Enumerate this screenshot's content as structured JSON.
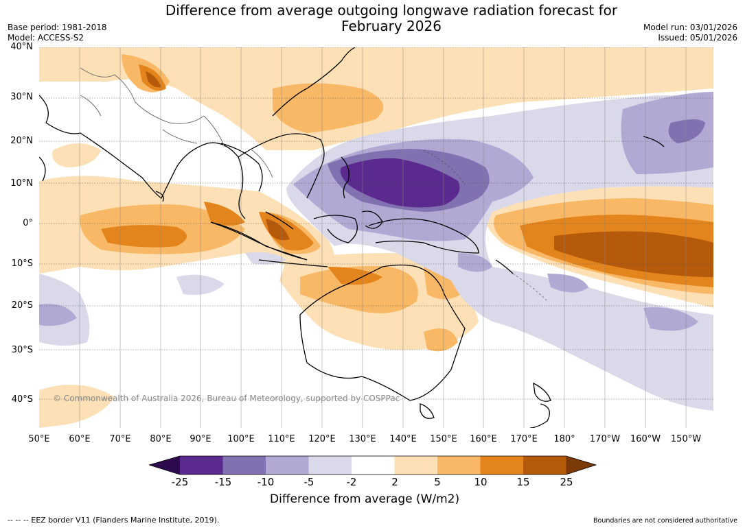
{
  "title": {
    "line1": "Difference from average outgoing longwave radiation forecast for",
    "line2": "February 2026"
  },
  "meta_left": {
    "base_period": "Base period: 1981-2018",
    "model": "Model: ACCESS-S2"
  },
  "meta_right": {
    "model_run": "Model run: 03/01/2026",
    "issued": "Issued: 05/01/2026"
  },
  "map": {
    "lat_labels": [
      "40°N",
      "30°N",
      "20°N",
      "10°N",
      "0°",
      "10°S",
      "20°S",
      "30°S",
      "40°S"
    ],
    "lon_labels": [
      "50°E",
      "60°E",
      "70°E",
      "80°E",
      "90°E",
      "100°E",
      "110°E",
      "120°E",
      "130°E",
      "140°E",
      "150°E",
      "160°E",
      "170°E",
      "180°",
      "170°W",
      "160°W",
      "150°W"
    ],
    "copyright": "© Commonwealth of Australia 2026, Bureau of Meteorology, supported by COSPPac"
  },
  "colorbar": {
    "ticks": [
      "-25",
      "-15",
      "-10",
      "-5",
      "-2",
      "2",
      "5",
      "10",
      "15",
      "25"
    ],
    "colors": [
      "#5b2a8e",
      "#8171b0",
      "#b1a9d3",
      "#d9d9ea",
      "#ffffff",
      "#fde0b5",
      "#f9b865",
      "#e4841c",
      "#b5590b"
    ],
    "under_color": "#2d0a4e",
    "over_color": "#7b3a06",
    "title": "Difference from average (W/m2)"
  },
  "footer": {
    "eez": "--  --  -- EEZ border V11 (Flanders Marine Institute, 2019).",
    "disclaimer": "Boundaries are not considered authoritative"
  }
}
